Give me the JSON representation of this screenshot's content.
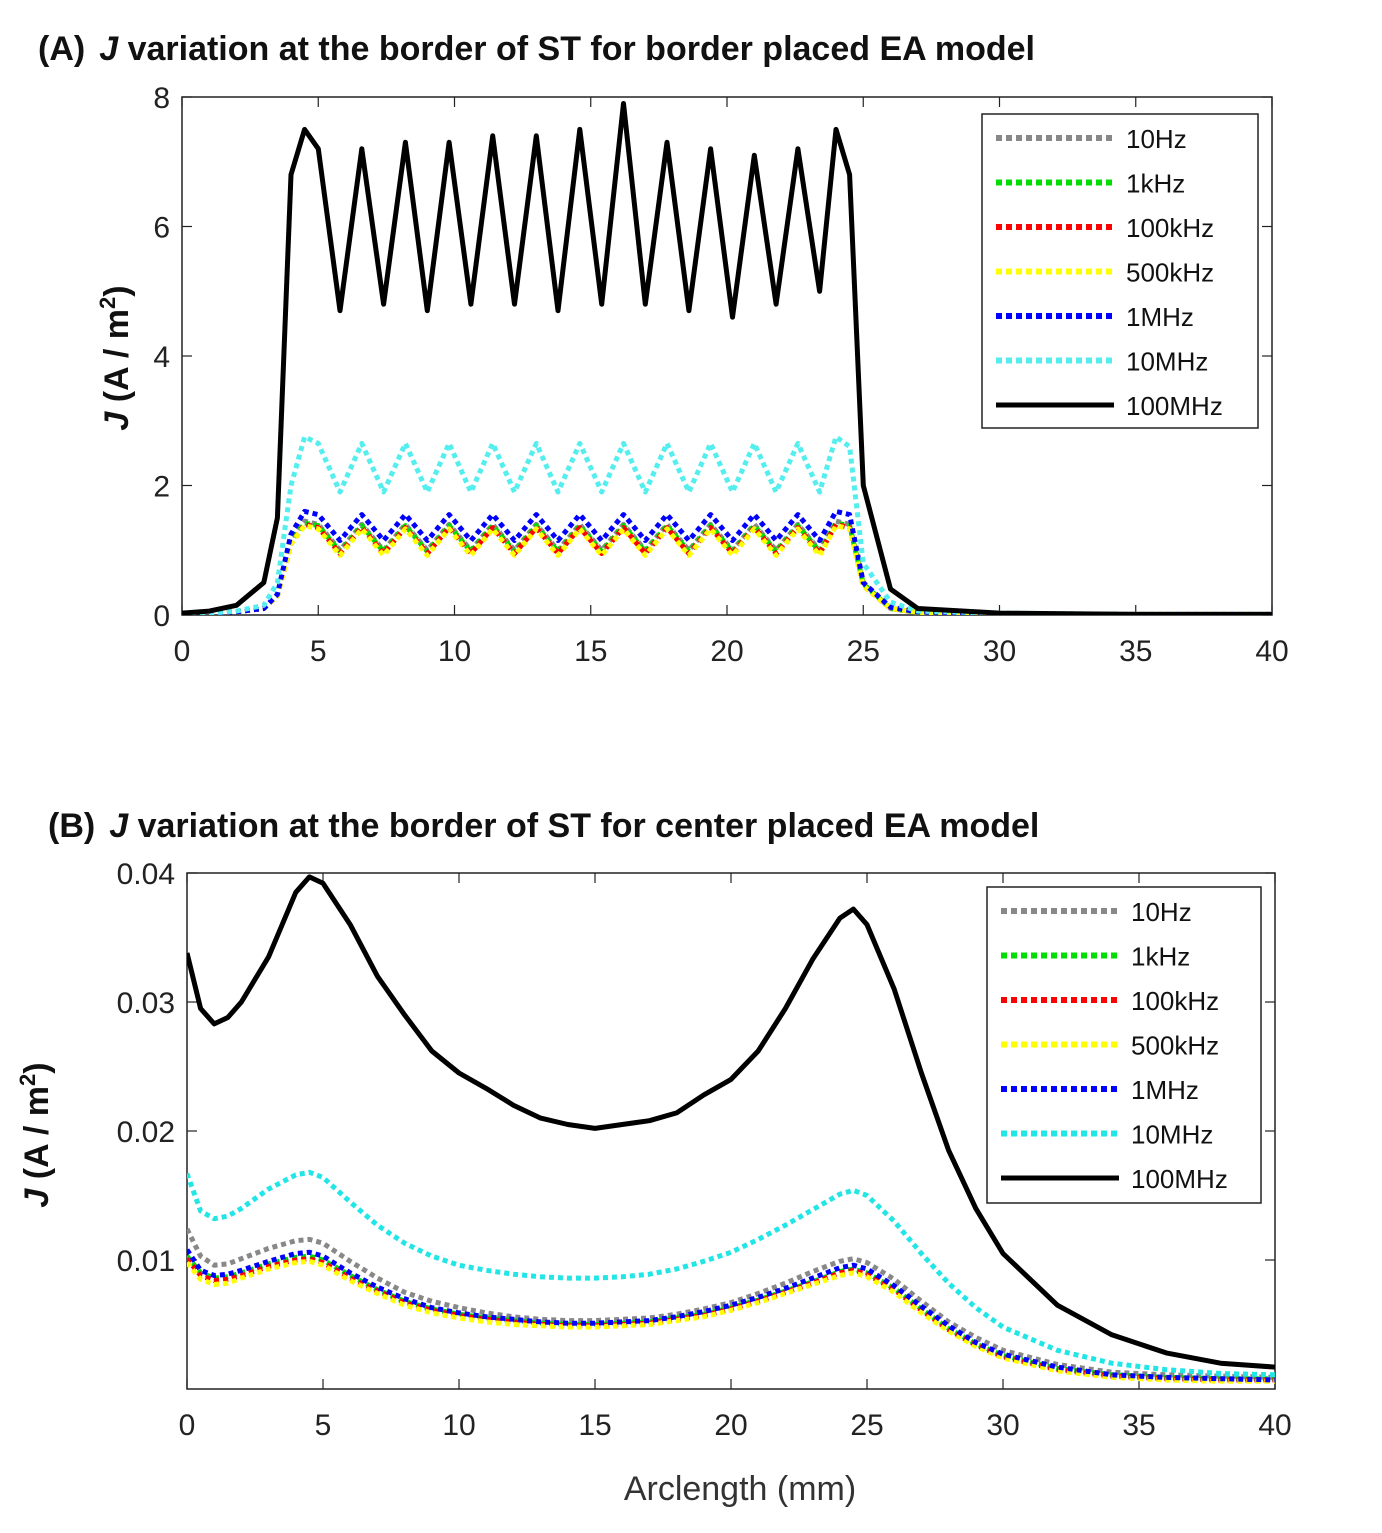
{
  "figure": {
    "xlabel": "Arclength (mm)"
  },
  "chart_data": [
    {
      "type": "line",
      "panel_label": "(A)",
      "title_italic": "J",
      "title_rest": " variation at the border of ST for border placed EA model",
      "ylabel_italic": "J",
      "ylabel_rest": " (A / m",
      "ylabel_sup": "2",
      "ylabel_close": ")",
      "xlim": [
        0,
        40
      ],
      "ylim": [
        0,
        8
      ],
      "xticks": [
        "0",
        "5",
        "10",
        "15",
        "20",
        "25",
        "30",
        "35",
        "40"
      ],
      "yticks": [
        "0",
        "2",
        "4",
        "6",
        "8"
      ],
      "legend_position": "top-right",
      "x": [
        0,
        1,
        2,
        3,
        3.5,
        4,
        4.5,
        5,
        5.8,
        6.6,
        7.4,
        8.2,
        9,
        9.8,
        10.6,
        11.4,
        12.2,
        13,
        13.8,
        14.6,
        15.4,
        16.2,
        17,
        17.8,
        18.6,
        19.4,
        20.2,
        21,
        21.8,
        22.6,
        23.4,
        24,
        24.5,
        25,
        26,
        27,
        30,
        35,
        40
      ],
      "series": [
        {
          "name": "10Hz",
          "color": "#888888",
          "dash": "dot",
          "values": [
            0.02,
            0.03,
            0.05,
            0.1,
            0.3,
            1.2,
            1.45,
            1.4,
            1.0,
            1.4,
            1.0,
            1.4,
            1.0,
            1.4,
            1.0,
            1.4,
            1.0,
            1.4,
            1.0,
            1.4,
            1.0,
            1.4,
            1.0,
            1.4,
            1.0,
            1.4,
            1.0,
            1.4,
            1.0,
            1.4,
            1.0,
            1.45,
            1.4,
            0.5,
            0.1,
            0.04,
            0.02,
            0.01,
            0.01
          ]
        },
        {
          "name": "1kHz",
          "color": "#00dd00",
          "dash": "dot",
          "values": [
            0.02,
            0.03,
            0.05,
            0.1,
            0.3,
            1.15,
            1.42,
            1.38,
            0.98,
            1.38,
            0.98,
            1.38,
            0.98,
            1.38,
            0.98,
            1.38,
            0.98,
            1.38,
            0.98,
            1.38,
            0.98,
            1.38,
            0.98,
            1.38,
            0.98,
            1.38,
            0.98,
            1.38,
            0.98,
            1.38,
            0.98,
            1.42,
            1.38,
            0.48,
            0.1,
            0.04,
            0.02,
            0.01,
            0.01
          ]
        },
        {
          "name": "100kHz",
          "color": "#ff0000",
          "dash": "dot",
          "values": [
            0.02,
            0.03,
            0.05,
            0.1,
            0.3,
            1.1,
            1.4,
            1.35,
            0.95,
            1.35,
            0.95,
            1.35,
            0.95,
            1.35,
            0.95,
            1.35,
            0.95,
            1.35,
            0.95,
            1.35,
            0.95,
            1.35,
            0.95,
            1.35,
            0.95,
            1.35,
            0.95,
            1.35,
            0.95,
            1.35,
            0.95,
            1.4,
            1.35,
            0.45,
            0.1,
            0.04,
            0.02,
            0.01,
            0.01
          ]
        },
        {
          "name": "500kHz",
          "color": "#ffff00",
          "dash": "dot",
          "values": [
            0.02,
            0.03,
            0.05,
            0.1,
            0.3,
            1.1,
            1.38,
            1.33,
            0.92,
            1.33,
            0.92,
            1.33,
            0.92,
            1.33,
            0.92,
            1.33,
            0.92,
            1.33,
            0.92,
            1.33,
            0.92,
            1.33,
            0.92,
            1.33,
            0.92,
            1.33,
            0.92,
            1.33,
            0.92,
            1.33,
            0.92,
            1.38,
            1.33,
            0.45,
            0.1,
            0.04,
            0.02,
            0.01,
            0.01
          ]
        },
        {
          "name": "1MHz",
          "color": "#0000ff",
          "dash": "dot",
          "values": [
            0.02,
            0.03,
            0.05,
            0.1,
            0.32,
            1.25,
            1.6,
            1.55,
            1.15,
            1.55,
            1.15,
            1.55,
            1.15,
            1.55,
            1.15,
            1.55,
            1.15,
            1.55,
            1.15,
            1.55,
            1.15,
            1.55,
            1.15,
            1.55,
            1.15,
            1.55,
            1.15,
            1.55,
            1.15,
            1.55,
            1.15,
            1.6,
            1.55,
            0.5,
            0.12,
            0.05,
            0.02,
            0.01,
            0.01
          ]
        },
        {
          "name": "10MHz",
          "color": "#55eeee",
          "dash": "dot",
          "values": [
            0.02,
            0.03,
            0.06,
            0.15,
            0.5,
            2.0,
            2.75,
            2.65,
            1.9,
            2.65,
            1.9,
            2.65,
            1.9,
            2.65,
            1.9,
            2.65,
            1.9,
            2.65,
            1.9,
            2.65,
            1.9,
            2.65,
            1.9,
            2.65,
            1.9,
            2.65,
            1.9,
            2.65,
            1.9,
            2.65,
            1.9,
            2.75,
            2.6,
            0.8,
            0.2,
            0.06,
            0.03,
            0.01,
            0.01
          ]
        },
        {
          "name": "100MHz",
          "color": "#000000",
          "dash": "solid",
          "values": [
            0.03,
            0.06,
            0.15,
            0.5,
            1.5,
            6.8,
            7.5,
            7.2,
            4.7,
            7.2,
            4.8,
            7.3,
            4.7,
            7.3,
            4.8,
            7.4,
            4.8,
            7.4,
            4.7,
            7.5,
            4.8,
            7.9,
            4.8,
            7.3,
            4.7,
            7.2,
            4.6,
            7.1,
            4.8,
            7.2,
            5.0,
            7.5,
            6.8,
            2.0,
            0.4,
            0.1,
            0.03,
            0.01,
            0.01
          ]
        }
      ]
    },
    {
      "type": "line",
      "panel_label": "(B)",
      "title_italic": "J",
      "title_rest": " variation at the border of ST for center placed EA model",
      "ylabel_italic": "J",
      "ylabel_rest": " (A / m",
      "ylabel_sup": "2",
      "ylabel_close": ")",
      "xlim": [
        0,
        40
      ],
      "ylim": [
        0,
        0.04
      ],
      "xticks": [
        "0",
        "5",
        "10",
        "15",
        "20",
        "25",
        "30",
        "35",
        "40"
      ],
      "yticks": [
        "0.01",
        "0.02",
        "0.03",
        "0.04"
      ],
      "legend_position": "top-right",
      "x": [
        0,
        0.5,
        1,
        1.5,
        2,
        3,
        4,
        4.5,
        5,
        6,
        7,
        8,
        9,
        10,
        11,
        12,
        13,
        14,
        15,
        16,
        17,
        18,
        19,
        20,
        21,
        22,
        23,
        24,
        24.5,
        25,
        26,
        27,
        28,
        29,
        30,
        32,
        34,
        36,
        38,
        40
      ],
      "series": [
        {
          "name": "10Hz",
          "color": "#888888",
          "dash": "dot",
          "values": [
            0.0124,
            0.0103,
            0.0096,
            0.0097,
            0.0101,
            0.0109,
            0.0115,
            0.0116,
            0.0113,
            0.0099,
            0.0086,
            0.0075,
            0.0068,
            0.0063,
            0.0059,
            0.0056,
            0.0054,
            0.0053,
            0.0053,
            0.0054,
            0.0055,
            0.0058,
            0.0062,
            0.0067,
            0.0074,
            0.0082,
            0.0091,
            0.0099,
            0.0101,
            0.0098,
            0.0085,
            0.0068,
            0.0052,
            0.004,
            0.003,
            0.0019,
            0.0013,
            0.0011,
            0.001,
            0.0009
          ]
        },
        {
          "name": "1kHz",
          "color": "#00dd00",
          "dash": "dot",
          "values": [
            0.0103,
            0.009,
            0.0086,
            0.0087,
            0.009,
            0.0097,
            0.0102,
            0.0103,
            0.01,
            0.0088,
            0.0077,
            0.0068,
            0.0062,
            0.0058,
            0.0055,
            0.0053,
            0.0051,
            0.005,
            0.005,
            0.0051,
            0.0052,
            0.0055,
            0.0058,
            0.0063,
            0.0069,
            0.0076,
            0.0083,
            0.0091,
            0.0093,
            0.009,
            0.0078,
            0.0062,
            0.0047,
            0.0035,
            0.0026,
            0.0016,
            0.0011,
            0.0009,
            0.0008,
            0.0008
          ]
        },
        {
          "name": "100kHz",
          "color": "#ff0000",
          "dash": "dot",
          "values": [
            0.0101,
            0.0088,
            0.0084,
            0.0085,
            0.0088,
            0.0095,
            0.01,
            0.0101,
            0.0098,
            0.0086,
            0.0076,
            0.0067,
            0.0061,
            0.0057,
            0.0054,
            0.0052,
            0.005,
            0.0049,
            0.0049,
            0.005,
            0.0051,
            0.0054,
            0.0057,
            0.0062,
            0.0068,
            0.0075,
            0.0082,
            0.009,
            0.0092,
            0.0089,
            0.0077,
            0.0061,
            0.0046,
            0.0034,
            0.0025,
            0.0015,
            0.001,
            0.0008,
            0.0007,
            0.0007
          ]
        },
        {
          "name": "500kHz",
          "color": "#ffff00",
          "dash": "dot",
          "values": [
            0.0098,
            0.0085,
            0.0081,
            0.0082,
            0.0086,
            0.0093,
            0.0098,
            0.0099,
            0.0096,
            0.0084,
            0.0074,
            0.0065,
            0.0059,
            0.0055,
            0.0052,
            0.005,
            0.0049,
            0.0048,
            0.0048,
            0.0049,
            0.005,
            0.0053,
            0.0056,
            0.0061,
            0.0067,
            0.0074,
            0.0081,
            0.0088,
            0.009,
            0.0087,
            0.0075,
            0.0059,
            0.0045,
            0.0033,
            0.0024,
            0.0014,
            0.0009,
            0.0007,
            0.0006,
            0.0006
          ]
        },
        {
          "name": "1MHz",
          "color": "#0000ff",
          "dash": "dot",
          "values": [
            0.0108,
            0.0092,
            0.0088,
            0.0089,
            0.0092,
            0.0099,
            0.0105,
            0.0106,
            0.0103,
            0.009,
            0.0079,
            0.007,
            0.0063,
            0.0059,
            0.0056,
            0.0054,
            0.0052,
            0.0051,
            0.0051,
            0.0052,
            0.0053,
            0.0056,
            0.006,
            0.0065,
            0.0071,
            0.0078,
            0.0086,
            0.0094,
            0.0096,
            0.0093,
            0.008,
            0.0064,
            0.0049,
            0.0036,
            0.0027,
            0.0017,
            0.0011,
            0.0009,
            0.0008,
            0.0007
          ]
        },
        {
          "name": "10MHz",
          "color": "#22e5e5",
          "dash": "dot",
          "values": [
            0.0167,
            0.0138,
            0.0132,
            0.0134,
            0.014,
            0.0155,
            0.0166,
            0.0168,
            0.0164,
            0.0145,
            0.0127,
            0.0113,
            0.0103,
            0.0096,
            0.0092,
            0.0089,
            0.0087,
            0.0086,
            0.0086,
            0.0087,
            0.0089,
            0.0093,
            0.0099,
            0.0106,
            0.0116,
            0.0127,
            0.0139,
            0.0151,
            0.0154,
            0.015,
            0.013,
            0.0105,
            0.0082,
            0.0063,
            0.0048,
            0.003,
            0.002,
            0.0015,
            0.0012,
            0.0011
          ]
        },
        {
          "name": "100MHz",
          "color": "#000000",
          "dash": "solid",
          "values": [
            0.0338,
            0.0295,
            0.0283,
            0.0288,
            0.03,
            0.0335,
            0.0385,
            0.0397,
            0.0392,
            0.036,
            0.032,
            0.029,
            0.0262,
            0.0245,
            0.0233,
            0.022,
            0.021,
            0.0205,
            0.0202,
            0.0205,
            0.0208,
            0.0214,
            0.0228,
            0.024,
            0.0262,
            0.0295,
            0.0333,
            0.0365,
            0.0372,
            0.036,
            0.031,
            0.0245,
            0.0185,
            0.014,
            0.0105,
            0.0065,
            0.0042,
            0.0028,
            0.002,
            0.0017
          ]
        }
      ]
    }
  ]
}
